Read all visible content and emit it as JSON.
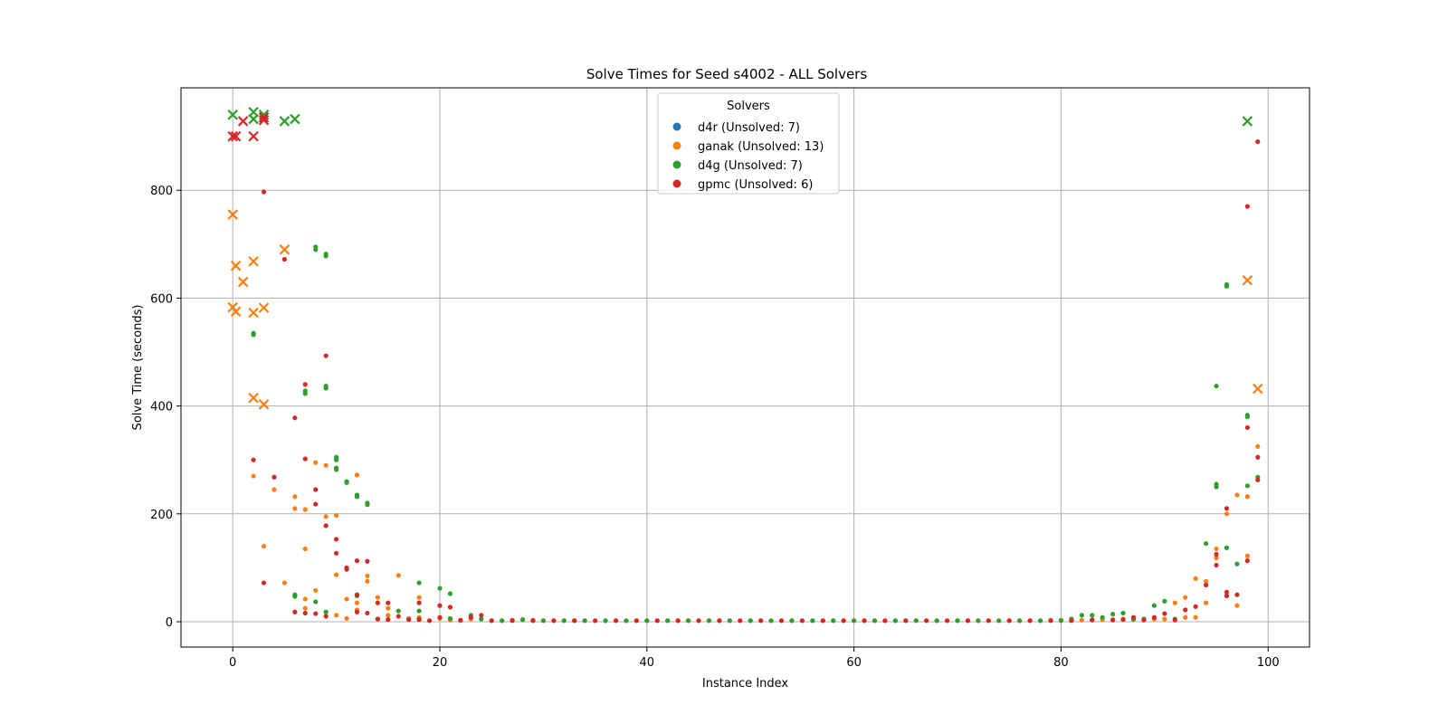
{
  "chart_data": {
    "type": "scatter",
    "title": "Solve Times for Seed s4002 - ALL Solvers",
    "xlabel": "Instance Index",
    "ylabel": "Solve Time (seconds)",
    "xlim": [
      -5,
      104
    ],
    "ylim": [
      -47,
      990
    ],
    "xticks": [
      0,
      20,
      40,
      60,
      80,
      100
    ],
    "yticks": [
      0,
      200,
      400,
      600,
      800
    ],
    "grid": true,
    "legend": {
      "title": "Solvers",
      "placement": "top-center"
    },
    "marker_note": "dots = solved, x = unsolved",
    "series": [
      {
        "name": "d4r (Unsolved: 7)",
        "color": "#1f77b4",
        "solved": [],
        "unsolved": []
      },
      {
        "name": "ganak (Unsolved: 13)",
        "color": "#ff7f0e",
        "solved": [
          [
            2,
            270
          ],
          [
            3,
            140
          ],
          [
            4,
            245
          ],
          [
            5,
            72
          ],
          [
            6,
            232
          ],
          [
            6,
            210
          ],
          [
            7,
            208
          ],
          [
            7,
            135
          ],
          [
            7,
            42
          ],
          [
            7,
            25
          ],
          [
            8,
            295
          ],
          [
            8,
            58
          ],
          [
            9,
            290
          ],
          [
            9,
            195
          ],
          [
            10,
            197
          ],
          [
            10,
            87
          ],
          [
            10,
            12
          ],
          [
            11,
            42
          ],
          [
            11,
            6
          ],
          [
            12,
            272
          ],
          [
            12,
            35
          ],
          [
            12,
            22
          ],
          [
            13,
            85
          ],
          [
            13,
            75
          ],
          [
            14,
            45
          ],
          [
            15,
            25
          ],
          [
            15,
            12
          ],
          [
            16,
            86
          ],
          [
            17,
            6
          ],
          [
            18,
            45
          ],
          [
            18,
            8
          ],
          [
            19,
            2
          ],
          [
            20,
            6
          ],
          [
            21,
            3
          ],
          [
            22,
            2
          ],
          [
            23,
            5
          ],
          [
            25,
            2
          ],
          [
            26,
            2
          ],
          [
            27,
            3
          ],
          [
            28,
            4
          ],
          [
            29,
            3
          ],
          [
            30,
            2
          ],
          [
            31,
            2
          ],
          [
            32,
            2
          ],
          [
            33,
            2
          ],
          [
            34,
            2
          ],
          [
            35,
            2
          ],
          [
            36,
            2
          ],
          [
            37,
            2
          ],
          [
            38,
            2
          ],
          [
            39,
            2
          ],
          [
            40,
            2
          ],
          [
            41,
            2
          ],
          [
            42,
            2
          ],
          [
            43,
            2
          ],
          [
            44,
            2
          ],
          [
            45,
            2
          ],
          [
            46,
            2
          ],
          [
            47,
            2
          ],
          [
            48,
            2
          ],
          [
            49,
            2
          ],
          [
            50,
            2
          ],
          [
            51,
            2
          ],
          [
            52,
            2
          ],
          [
            53,
            2
          ],
          [
            54,
            2
          ],
          [
            55,
            2
          ],
          [
            56,
            2
          ],
          [
            57,
            2
          ],
          [
            58,
            2
          ],
          [
            59,
            2
          ],
          [
            60,
            2
          ],
          [
            61,
            2
          ],
          [
            62,
            2
          ],
          [
            63,
            2
          ],
          [
            64,
            2
          ],
          [
            65,
            2
          ],
          [
            66,
            2
          ],
          [
            67,
            2
          ],
          [
            68,
            2
          ],
          [
            69,
            2
          ],
          [
            70,
            2
          ],
          [
            71,
            2
          ],
          [
            72,
            2
          ],
          [
            73,
            2
          ],
          [
            74,
            2
          ],
          [
            75,
            2
          ],
          [
            76,
            2
          ],
          [
            77,
            2
          ],
          [
            78,
            2
          ],
          [
            79,
            3
          ],
          [
            80,
            3
          ],
          [
            81,
            3
          ],
          [
            82,
            3
          ],
          [
            83,
            4
          ],
          [
            84,
            4
          ],
          [
            85,
            4
          ],
          [
            86,
            5
          ],
          [
            87,
            4
          ],
          [
            88,
            4
          ],
          [
            89,
            5
          ],
          [
            90,
            5
          ],
          [
            91,
            35
          ],
          [
            92,
            45
          ],
          [
            92,
            8
          ],
          [
            93,
            80
          ],
          [
            93,
            8
          ],
          [
            94,
            75
          ],
          [
            94,
            35
          ],
          [
            95,
            118
          ],
          [
            95,
            135
          ],
          [
            96,
            200
          ],
          [
            97,
            235
          ],
          [
            97,
            30
          ],
          [
            98,
            232
          ],
          [
            98,
            122
          ],
          [
            99,
            325
          ]
        ],
        "unsolved": [
          [
            0,
            755
          ],
          [
            0,
            583
          ],
          [
            0.3,
            575
          ],
          [
            0.3,
            660
          ],
          [
            1,
            630
          ],
          [
            2,
            668
          ],
          [
            2,
            573
          ],
          [
            2,
            415
          ],
          [
            3,
            582
          ],
          [
            3,
            403
          ],
          [
            5,
            690
          ],
          [
            98,
            633
          ],
          [
            99,
            432
          ]
        ]
      },
      {
        "name": "d4g (Unsolved: 7)",
        "color": "#2ca02c",
        "solved": [
          [
            2,
            535
          ],
          [
            2,
            532
          ],
          [
            6,
            50
          ],
          [
            6,
            47
          ],
          [
            7,
            428
          ],
          [
            7,
            423
          ],
          [
            8,
            695
          ],
          [
            8,
            690
          ],
          [
            8,
            37
          ],
          [
            9,
            682
          ],
          [
            9,
            678
          ],
          [
            9,
            437
          ],
          [
            9,
            433
          ],
          [
            9,
            18
          ],
          [
            10,
            305
          ],
          [
            10,
            300
          ],
          [
            10,
            285
          ],
          [
            10,
            282
          ],
          [
            11,
            260
          ],
          [
            11,
            258
          ],
          [
            12,
            235
          ],
          [
            12,
            232
          ],
          [
            12,
            48
          ],
          [
            13,
            220
          ],
          [
            13,
            217
          ],
          [
            14,
            5
          ],
          [
            16,
            20
          ],
          [
            18,
            72
          ],
          [
            18,
            20
          ],
          [
            18,
            5
          ],
          [
            20,
            62
          ],
          [
            21,
            52
          ],
          [
            21,
            6
          ],
          [
            23,
            12
          ],
          [
            24,
            5
          ],
          [
            26,
            2
          ],
          [
            28,
            4
          ],
          [
            29,
            2
          ],
          [
            30,
            2
          ],
          [
            32,
            2
          ],
          [
            33,
            2
          ],
          [
            34,
            2
          ],
          [
            36,
            2
          ],
          [
            38,
            2
          ],
          [
            40,
            2
          ],
          [
            42,
            2
          ],
          [
            44,
            2
          ],
          [
            46,
            2
          ],
          [
            48,
            2
          ],
          [
            50,
            2
          ],
          [
            52,
            2
          ],
          [
            54,
            2
          ],
          [
            56,
            2
          ],
          [
            58,
            2
          ],
          [
            60,
            2
          ],
          [
            62,
            2
          ],
          [
            64,
            2
          ],
          [
            66,
            2
          ],
          [
            68,
            2
          ],
          [
            70,
            2
          ],
          [
            72,
            2
          ],
          [
            74,
            2
          ],
          [
            76,
            2
          ],
          [
            78,
            2
          ],
          [
            80,
            2
          ],
          [
            81,
            5
          ],
          [
            82,
            12
          ],
          [
            83,
            12
          ],
          [
            84,
            8
          ],
          [
            85,
            14
          ],
          [
            86,
            16
          ],
          [
            87,
            5
          ],
          [
            88,
            5
          ],
          [
            89,
            30
          ],
          [
            90,
            38
          ],
          [
            91,
            5
          ],
          [
            94,
            145
          ],
          [
            95,
            255
          ],
          [
            95,
            250
          ],
          [
            95,
            437
          ],
          [
            96,
            625
          ],
          [
            96,
            622
          ],
          [
            96,
            137
          ],
          [
            97,
            107
          ],
          [
            98,
            383
          ],
          [
            98,
            380
          ],
          [
            98,
            252
          ],
          [
            99,
            268
          ]
        ],
        "unsolved": [
          [
            0,
            940
          ],
          [
            2,
            945
          ],
          [
            2,
            932
          ],
          [
            3,
            940
          ],
          [
            5,
            928
          ],
          [
            6,
            932
          ],
          [
            98,
            928
          ]
        ]
      },
      {
        "name": "gpmc (Unsolved: 6)",
        "color": "#d62728",
        "solved": [
          [
            2,
            300
          ],
          [
            3,
            797
          ],
          [
            3,
            72
          ],
          [
            4,
            268
          ],
          [
            5,
            672
          ],
          [
            6,
            378
          ],
          [
            6,
            18
          ],
          [
            7,
            440
          ],
          [
            7,
            302
          ],
          [
            7,
            16
          ],
          [
            8,
            245
          ],
          [
            8,
            218
          ],
          [
            8,
            15
          ],
          [
            9,
            493
          ],
          [
            9,
            178
          ],
          [
            9,
            10
          ],
          [
            10,
            153
          ],
          [
            10,
            127
          ],
          [
            11,
            97
          ],
          [
            11,
            100
          ],
          [
            12,
            113
          ],
          [
            12,
            50
          ],
          [
            12,
            18
          ],
          [
            13,
            112
          ],
          [
            13,
            16
          ],
          [
            14,
            35
          ],
          [
            14,
            5
          ],
          [
            15,
            35
          ],
          [
            15,
            4
          ],
          [
            16,
            10
          ],
          [
            17,
            4
          ],
          [
            18,
            35
          ],
          [
            18,
            4
          ],
          [
            19,
            2
          ],
          [
            20,
            30
          ],
          [
            20,
            8
          ],
          [
            21,
            27
          ],
          [
            22,
            3
          ],
          [
            23,
            8
          ],
          [
            24,
            12
          ],
          [
            25,
            2
          ],
          [
            27,
            2
          ],
          [
            29,
            2
          ],
          [
            31,
            2
          ],
          [
            33,
            2
          ],
          [
            35,
            2
          ],
          [
            37,
            2
          ],
          [
            39,
            2
          ],
          [
            41,
            2
          ],
          [
            43,
            2
          ],
          [
            45,
            2
          ],
          [
            47,
            2
          ],
          [
            49,
            2
          ],
          [
            51,
            2
          ],
          [
            53,
            2
          ],
          [
            55,
            2
          ],
          [
            57,
            2
          ],
          [
            59,
            2
          ],
          [
            61,
            2
          ],
          [
            63,
            2
          ],
          [
            65,
            2
          ],
          [
            67,
            2
          ],
          [
            69,
            2
          ],
          [
            71,
            2
          ],
          [
            73,
            2
          ],
          [
            75,
            2
          ],
          [
            77,
            2
          ],
          [
            79,
            2
          ],
          [
            81,
            2
          ],
          [
            83,
            3
          ],
          [
            85,
            3
          ],
          [
            86,
            4
          ],
          [
            87,
            8
          ],
          [
            88,
            3
          ],
          [
            89,
            8
          ],
          [
            90,
            15
          ],
          [
            91,
            3
          ],
          [
            92,
            22
          ],
          [
            93,
            28
          ],
          [
            94,
            68
          ],
          [
            95,
            105
          ],
          [
            95,
            125
          ],
          [
            96,
            210
          ],
          [
            96,
            55
          ],
          [
            96,
            48
          ],
          [
            97,
            50
          ],
          [
            98,
            770
          ],
          [
            98,
            360
          ],
          [
            98,
            113
          ],
          [
            99,
            890
          ],
          [
            99,
            305
          ],
          [
            99,
            263
          ]
        ],
        "unsolved": [
          [
            0,
            900
          ],
          [
            0.3,
            900
          ],
          [
            1,
            928
          ],
          [
            2,
            900
          ],
          [
            3,
            935
          ],
          [
            3,
            930
          ]
        ]
      }
    ]
  }
}
